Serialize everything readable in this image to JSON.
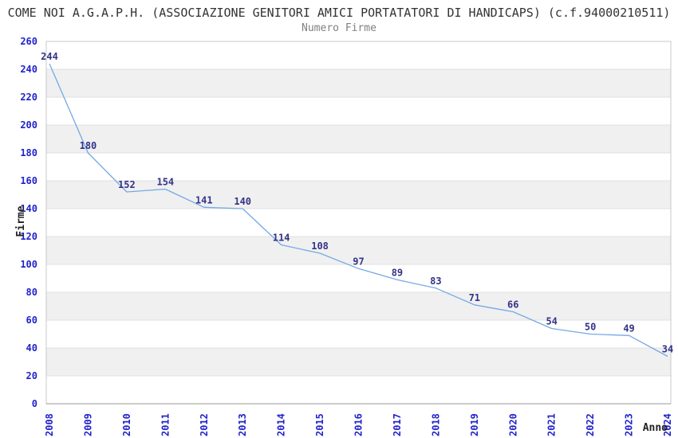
{
  "header": {
    "title": "COME NOI A.G.A.P.H. (ASSOCIAZIONE GENITORI AMICI PORTATATORI DI HANDICAPS) (c.f.94000210511)",
    "subtitle": "Numero Firme"
  },
  "chart_data": {
    "type": "line",
    "title": "COME NOI A.G.A.P.H. (ASSOCIAZIONE GENITORI AMICI PORTATATORI DI HANDICAPS) (c.f.94000210511)",
    "subtitle": "Numero Firme",
    "xlabel": "Anno",
    "ylabel": "Firme",
    "categories": [
      "2008",
      "2009",
      "2010",
      "2011",
      "2012",
      "2013",
      "2014",
      "2015",
      "2016",
      "2017",
      "2018",
      "2019",
      "2020",
      "2021",
      "2022",
      "2023",
      "2024"
    ],
    "values": [
      244,
      180,
      152,
      154,
      141,
      140,
      114,
      108,
      97,
      89,
      83,
      71,
      66,
      54,
      50,
      49,
      34
    ],
    "ylim": [
      0,
      260
    ],
    "ytick_step": 20,
    "grid": true,
    "legend_position": "none",
    "band_fill": "alternating-horizontal",
    "colors": {
      "line": "#74a9e4",
      "tick_label": "#2222cc",
      "data_label": "#333388",
      "band": "#f0f0f0",
      "gridline": "#e0e0e0",
      "plot_border": "#c9c9c9",
      "axis_line": "#999999",
      "axis_title": "#222222",
      "title": "#333333",
      "subtitle": "#808080",
      "background": "#ffffff"
    }
  }
}
